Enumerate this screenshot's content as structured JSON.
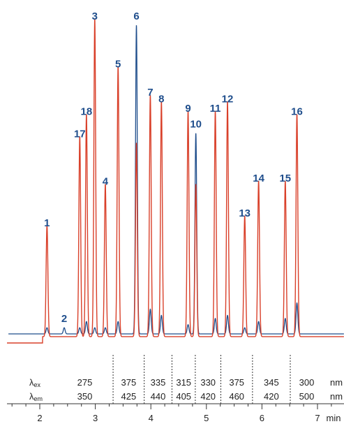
{
  "chart_data": {
    "type": "line",
    "xlabel": "min",
    "xlim": [
      1.3,
      7.45
    ],
    "x_ticks": [
      2,
      3,
      4,
      5,
      6,
      7
    ],
    "colors": {
      "fluorescence": "#d9402a",
      "uv": "#1f4e8c",
      "labels": "#1f4e8c"
    },
    "series": [
      {
        "id": "fluorescence",
        "color": "#d9402a",
        "baseline_rel": 0.045
      },
      {
        "id": "uv",
        "color": "#1f4e8c",
        "baseline_rel": 0.06
      }
    ],
    "peaks": [
      {
        "label": "1",
        "x": 2.13,
        "fl": 0.35,
        "uv": 0.02
      },
      {
        "label": "2",
        "x": 2.44,
        "fl": 0.0,
        "uv": 0.02
      },
      {
        "label": "17",
        "x": 2.72,
        "fl": 0.63,
        "uv": 0.02
      },
      {
        "label": "18",
        "x": 2.84,
        "fl": 0.7,
        "uv": 0.04
      },
      {
        "label": "3",
        "x": 2.99,
        "fl": 1.0,
        "uv": 0.02
      },
      {
        "label": "4",
        "x": 3.18,
        "fl": 0.48,
        "uv": 0.02
      },
      {
        "label": "5",
        "x": 3.41,
        "fl": 0.85,
        "uv": 0.04
      },
      {
        "label": "6",
        "x": 3.74,
        "fl": 0.61,
        "uv": 1.0
      },
      {
        "label": "7",
        "x": 3.99,
        "fl": 0.76,
        "uv": 0.08
      },
      {
        "label": "8",
        "x": 4.19,
        "fl": 0.74,
        "uv": 0.06
      },
      {
        "label": "9",
        "x": 4.67,
        "fl": 0.71,
        "uv": 0.03
      },
      {
        "label": "10",
        "x": 4.81,
        "fl": 0.48,
        "uv": 0.65
      },
      {
        "label": "11",
        "x": 5.16,
        "fl": 0.71,
        "uv": 0.05
      },
      {
        "label": "12",
        "x": 5.38,
        "fl": 0.74,
        "uv": 0.06
      },
      {
        "label": "13",
        "x": 5.69,
        "fl": 0.38,
        "uv": 0.02
      },
      {
        "label": "14",
        "x": 5.94,
        "fl": 0.49,
        "uv": 0.04
      },
      {
        "label": "15",
        "x": 6.42,
        "fl": 0.49,
        "uv": 0.05
      },
      {
        "label": "16",
        "x": 6.63,
        "fl": 0.7,
        "uv": 0.1
      }
    ],
    "wavelength_table": {
      "ex_label": "λ",
      "ex_sub": "ex",
      "em_label": "λ",
      "em_sub": "em",
      "unit": "nm",
      "segments": [
        {
          "ex": "275",
          "em": "350"
        },
        {
          "ex": "375",
          "em": "425"
        },
        {
          "ex": "335",
          "em": "440"
        },
        {
          "ex": "315",
          "em": "405"
        },
        {
          "ex": "330",
          "em": "420"
        },
        {
          "ex": "375",
          "em": "460"
        },
        {
          "ex": "345",
          "em": "420"
        },
        {
          "ex": "300",
          "em": "500"
        }
      ],
      "switch_times": [
        3.32,
        3.88,
        4.38,
        4.8,
        5.26,
        5.83,
        6.51
      ]
    }
  }
}
